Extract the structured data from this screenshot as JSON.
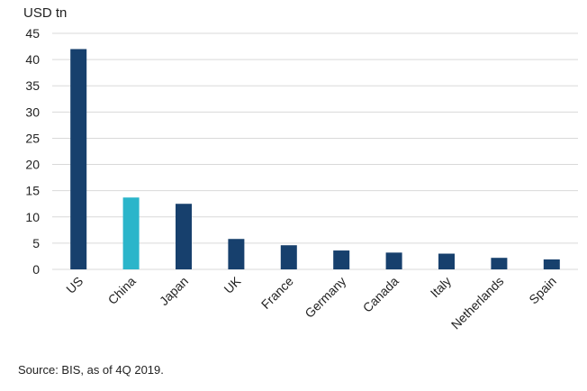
{
  "chart_data": {
    "type": "bar",
    "unit_label": "USD tn",
    "categories": [
      "US",
      "China",
      "Japan",
      "UK",
      "France",
      "Germany",
      "Canada",
      "Italy",
      "Netherlands",
      "Spain"
    ],
    "values": [
      42,
      13.7,
      12.5,
      5.8,
      4.6,
      3.6,
      3.2,
      3.0,
      2.2,
      1.9
    ],
    "highlight_category": "China",
    "colors": {
      "default": "#17406d",
      "highlight": "#2bb5ca",
      "grid": "#d9d9d9"
    },
    "ylim": [
      0,
      45
    ],
    "yticks": [
      0,
      5,
      10,
      15,
      20,
      25,
      30,
      35,
      40,
      45
    ],
    "grid": true,
    "legend": "none"
  },
  "source_note": "Source: BIS, as of 4Q 2019."
}
